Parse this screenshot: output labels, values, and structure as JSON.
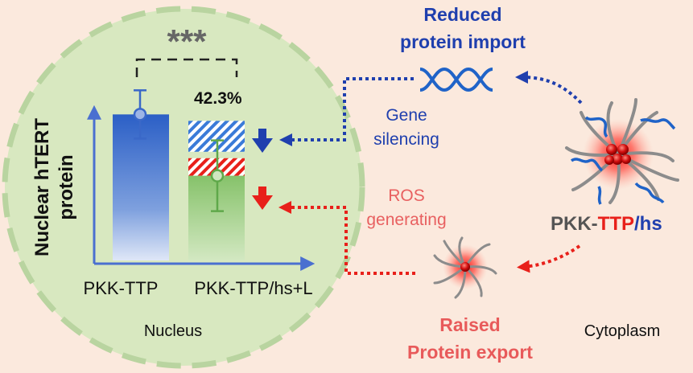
{
  "colors": {
    "background": "#fbe9dd",
    "nucleus_fill": "#d8e8c0",
    "blue": "#1f3fae",
    "red": "#e8201a",
    "gray_text": "#555555",
    "green_bar": "#8cc36f",
    "blue_bar": "#2f63c9"
  },
  "stats": {
    "significance": "***",
    "percent": "42.3%"
  },
  "chart": {
    "ylabel_line1": "Nuclear hTERT",
    "ylabel_line2": "protein",
    "x_tick_1": "PKK-TTP",
    "x_tick_2": "PKK-TTP/hs+L"
  },
  "chart_data": {
    "type": "bar",
    "categories": [
      "PKK-TTP",
      "PKK-TTP/hs+L"
    ],
    "values": [
      1.0,
      0.58
    ],
    "ylim": [
      0,
      1.2
    ],
    "xlabel": "",
    "ylabel": "Nuclear hTERT protein",
    "annotation": "42.3%",
    "significance": "***"
  },
  "labels": {
    "nucleus": "Nucleus",
    "cytoplasm": "Cytoplasm",
    "reduced_import_line1": "Reduced",
    "reduced_import_line2": "protein import",
    "gene_silencing_line1": "Gene",
    "gene_silencing_line2": "silencing",
    "ros_line1": "ROS",
    "ros_line2": "generating",
    "raised_export_line1": "Raised",
    "raised_export_line2": "Protein export",
    "formula_part1": "PKK-",
    "formula_part2": "TTP",
    "formula_part3": "/hs"
  },
  "icons": [
    "dna-helix-icon",
    "nanoparticle-icon",
    "down-arrow-icon"
  ]
}
